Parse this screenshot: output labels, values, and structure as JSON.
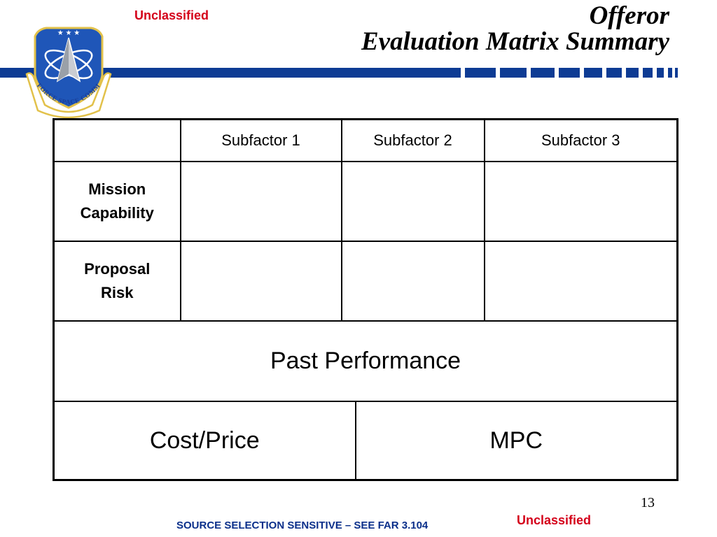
{
  "header": {
    "classification": "Unclassified",
    "title_line1": "Offeror",
    "title_line2": "Evaluation Matrix Summary",
    "emblem_text": "AIR FORCE SPACE COMMAND"
  },
  "matrix": {
    "column_headers": [
      "",
      "Subfactor 1",
      "Subfactor 2",
      "Subfactor 3"
    ],
    "rows": [
      {
        "label_line1": "Mission",
        "label_line2": "Capability",
        "cells": [
          "",
          "",
          ""
        ]
      },
      {
        "label_line1": "Proposal",
        "label_line2": "Risk",
        "cells": [
          "",
          "",
          ""
        ]
      }
    ],
    "past_performance": "Past Performance",
    "cost_price": "Cost/Price",
    "mpc": "MPC"
  },
  "footer": {
    "page_number": "13",
    "classification": "Unclassified",
    "note": "SOURCE SELECTION SENSITIVE – SEE FAR 3.104"
  },
  "colors": {
    "accent_blue": "#0d3b94",
    "classification_red": "#d4001a"
  }
}
